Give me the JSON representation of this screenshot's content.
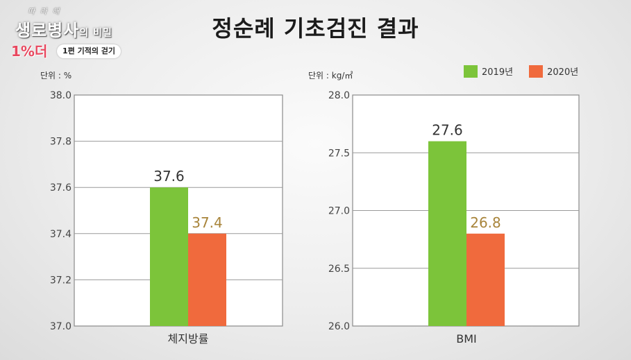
{
  "logo": {
    "small_text": "따 라 해",
    "big_text_a": "생로병사",
    "big_text_b": "의 비밀",
    "mark": "1%더",
    "episode": "1편 기적의 걷기"
  },
  "title": "정순례 기초검진 결과",
  "colors": {
    "y2019": "#7cc43a",
    "y2020": "#f06a3d"
  },
  "chart_data": [
    {
      "type": "bar",
      "unit_label": "단위 : %",
      "categories": [
        "체지방률"
      ],
      "series": [
        {
          "name": "2019년",
          "values": [
            37.6
          ],
          "label": "37.6"
        },
        {
          "name": "2020년",
          "values": [
            37.4
          ],
          "label": "37.4"
        }
      ],
      "ylim": [
        37.0,
        38.0
      ],
      "yticks": [
        "37.0",
        "37.2",
        "37.4",
        "37.6",
        "37.8",
        "38.0"
      ],
      "grid": true
    },
    {
      "type": "bar",
      "unit_label": "단위 : kg/㎡",
      "categories": [
        "BMI"
      ],
      "series": [
        {
          "name": "2019년",
          "values": [
            27.6
          ],
          "label": "27.6"
        },
        {
          "name": "2020년",
          "values": [
            26.8
          ],
          "label": "26.8"
        }
      ],
      "ylim": [
        26.0,
        28.0
      ],
      "yticks": [
        "26.0",
        "26.5",
        "27.0",
        "27.5",
        "28.0"
      ],
      "grid": true,
      "legend": "top-right",
      "legend_items": [
        "2019년",
        "2020년"
      ]
    }
  ]
}
